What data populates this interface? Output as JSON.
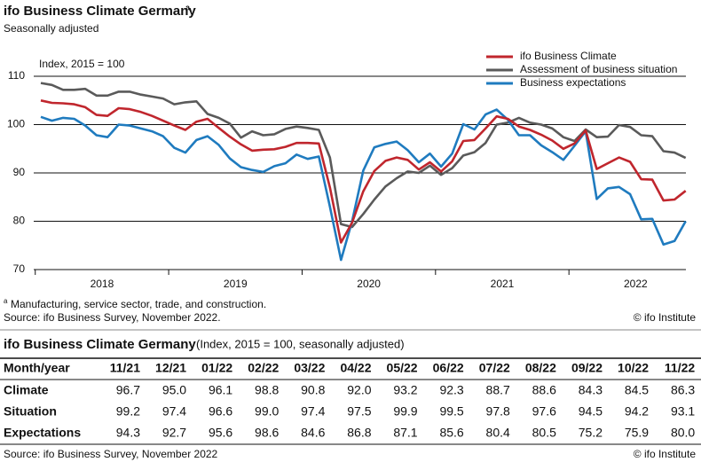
{
  "chart_data": {
    "type": "line",
    "title": "ifo Business Climate Germany",
    "title_superscript": "a",
    "subtitle": "Seasonally adjusted",
    "y_label": "Index, 2015 = 100",
    "categories": [
      null,
      null,
      null,
      null,
      null,
      "2018",
      null,
      null,
      null,
      null,
      null,
      null,
      null,
      null,
      null,
      null,
      null,
      "2019",
      null,
      null,
      null,
      null,
      null,
      null,
      null,
      null,
      null,
      null,
      null,
      "2020",
      null,
      null,
      null,
      null,
      null,
      null,
      null,
      null,
      null,
      null,
      null,
      "2021",
      null,
      null,
      null,
      null,
      null,
      null,
      null,
      null,
      null,
      null,
      null,
      "2022",
      null,
      null,
      null,
      null,
      null
    ],
    "series": [
      {
        "name": "ifo Business Climate",
        "color": "#c0262d",
        "values": [
          105.0,
          104.5,
          104.4,
          104.2,
          103.6,
          102.0,
          101.8,
          103.4,
          103.2,
          102.6,
          101.8,
          100.8,
          99.8,
          98.9,
          100.6,
          101.2,
          99.3,
          97.5,
          95.9,
          94.6,
          94.8,
          94.9,
          95.4,
          96.2,
          96.2,
          96.1,
          87.0,
          75.6,
          79.7,
          86.2,
          90.4,
          92.5,
          93.2,
          92.7,
          90.7,
          92.2,
          90.3,
          92.4,
          96.6,
          96.8,
          99.2,
          101.7,
          101.2,
          99.6,
          98.9,
          97.9,
          96.7,
          95.0,
          96.1,
          98.8,
          90.8,
          92.0,
          93.2,
          92.3,
          88.7,
          88.6,
          84.3,
          84.5,
          86.3
        ]
      },
      {
        "name": "Assessment of business situation",
        "color": "#5a5a5a",
        "values": [
          108.6,
          108.2,
          107.2,
          107.2,
          107.4,
          106.0,
          106.0,
          106.8,
          106.8,
          106.2,
          105.8,
          105.4,
          104.2,
          104.6,
          104.8,
          102.2,
          101.4,
          100.2,
          97.3,
          98.6,
          97.8,
          98.0,
          99.1,
          99.6,
          99.3,
          98.9,
          93.2,
          79.4,
          78.8,
          81.5,
          84.5,
          87.2,
          88.9,
          90.3,
          90.0,
          91.5,
          89.6,
          91.0,
          93.6,
          94.3,
          96.2,
          100.0,
          100.4,
          101.4,
          100.4,
          100.0,
          99.2,
          97.4,
          96.6,
          99.0,
          97.4,
          97.5,
          99.9,
          99.5,
          97.8,
          97.6,
          94.5,
          94.2,
          93.1
        ]
      },
      {
        "name": "Business expectations",
        "color": "#1f7bbf",
        "values": [
          101.6,
          100.8,
          101.4,
          101.2,
          99.8,
          97.8,
          97.4,
          100.0,
          99.8,
          99.2,
          98.6,
          97.6,
          95.2,
          94.2,
          96.8,
          97.6,
          95.8,
          93.0,
          91.2,
          90.6,
          90.2,
          91.4,
          92.0,
          93.8,
          92.9,
          93.4,
          83.0,
          72.0,
          80.0,
          90.5,
          95.3,
          96.0,
          96.5,
          94.7,
          92.2,
          94.0,
          91.3,
          94.0,
          100.1,
          99.0,
          102.1,
          103.1,
          101.0,
          97.8,
          97.8,
          95.7,
          94.3,
          92.7,
          95.6,
          98.6,
          84.6,
          86.8,
          87.1,
          85.6,
          80.4,
          80.5,
          75.2,
          75.9,
          80.0
        ]
      }
    ],
    "ylim": [
      70,
      110
    ],
    "yticks": [
      70,
      80,
      90,
      100,
      110
    ],
    "grid": true,
    "legend": "top-right",
    "footnote_marker": "a",
    "footnote": "Manufacturing, service sector, trade, and construction.",
    "source": "Source: ifo Business Survey, November 2022.",
    "copyright": "© ifo Institute"
  },
  "table": {
    "title": "ifo Business Climate Germany",
    "subtitle": "(Index, 2015 = 100, seasonally adjusted)",
    "header": [
      "Month/year",
      "11/21",
      "12/21",
      "01/22",
      "02/22",
      "03/22",
      "04/22",
      "05/22",
      "06/22",
      "07/22",
      "08/22",
      "09/22",
      "10/22",
      "11/22"
    ],
    "rows": [
      [
        "Climate",
        "96.7",
        "95.0",
        "96.1",
        "98.8",
        "90.8",
        "92.0",
        "93.2",
        "92.3",
        "88.7",
        "88.6",
        "84.3",
        "84.5",
        "86.3"
      ],
      [
        "Situation",
        "99.2",
        "97.4",
        "96.6",
        "99.0",
        "97.4",
        "97.5",
        "99.9",
        "99.5",
        "97.8",
        "97.6",
        "94.5",
        "94.2",
        "93.1"
      ],
      [
        "Expectations",
        "94.3",
        "92.7",
        "95.6",
        "98.6",
        "84.6",
        "86.8",
        "87.1",
        "85.6",
        "80.4",
        "80.5",
        "75.2",
        "75.9",
        "80.0"
      ]
    ],
    "source": "Source: ifo Business Survey, November 2022",
    "copyright": "© ifo Institute"
  }
}
